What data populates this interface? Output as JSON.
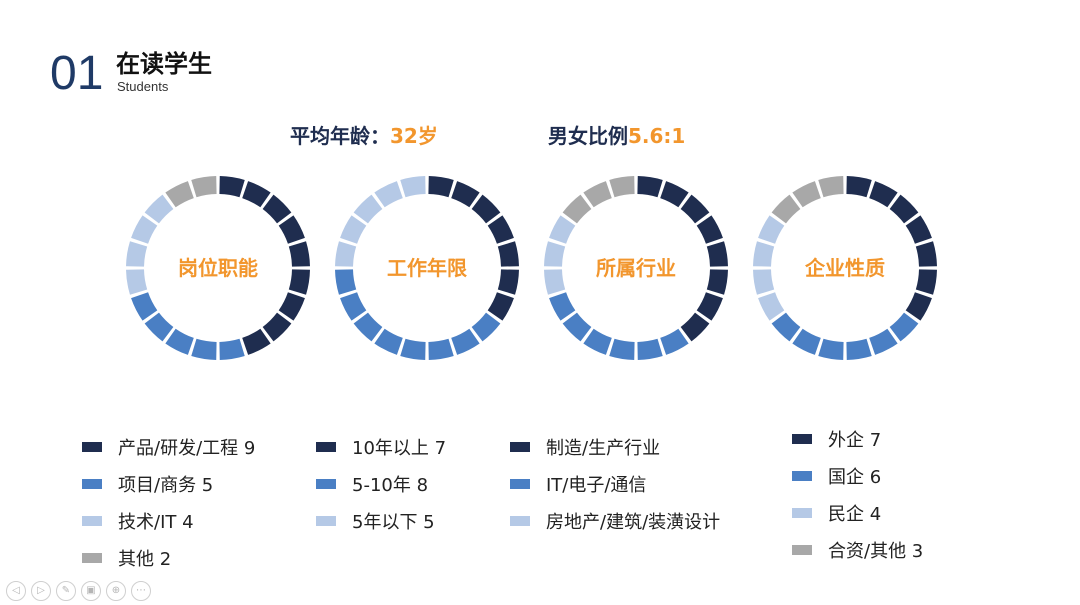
{
  "header": {
    "number": "01",
    "title": "在读学生",
    "subtitle": "Students"
  },
  "stats": {
    "avg_age_label": "平均年龄：",
    "avg_age_value": "32岁",
    "gender_label": "男女比例",
    "gender_value": "5.6:1"
  },
  "colors": {
    "dark": "#1f2d4f",
    "mid": "#4a7fc4",
    "light": "#b5c9e6",
    "gray": "#a8a8a8",
    "accent": "#f2962d"
  },
  "chart_data": [
    {
      "type": "pie",
      "title": "岗位职能",
      "series": [
        {
          "name": "产品/研发/工程",
          "value": 9,
          "color": "#1f2d4f"
        },
        {
          "name": "项目/商务",
          "value": 5,
          "color": "#4a7fc4"
        },
        {
          "name": "技术/IT",
          "value": 4,
          "color": "#b5c9e6"
        },
        {
          "name": "其他",
          "value": 2,
          "color": "#a8a8a8"
        }
      ],
      "legend": [
        "产品/研发/工程 9",
        "项目/商务 5",
        "技术/IT 4",
        "其他 2"
      ]
    },
    {
      "type": "pie",
      "title": "工作年限",
      "series": [
        {
          "name": "10年以上",
          "value": 7,
          "color": "#1f2d4f"
        },
        {
          "name": "5-10年",
          "value": 8,
          "color": "#4a7fc4"
        },
        {
          "name": "5年以下",
          "value": 5,
          "color": "#b5c9e6"
        }
      ],
      "legend": [
        "10年以上 7",
        "5-10年  8",
        "5年以下 5"
      ]
    },
    {
      "type": "pie",
      "title": "所属行业",
      "series": [
        {
          "name": "制造/生产行业",
          "value": 8,
          "color": "#1f2d4f"
        },
        {
          "name": "IT/电子/通信",
          "value": 6,
          "color": "#4a7fc4"
        },
        {
          "name": "房地产/建筑/装潢设计",
          "value": 3,
          "color": "#b5c9e6"
        },
        {
          "name": "",
          "value": 3,
          "color": "#a8a8a8"
        }
      ],
      "legend": [
        "制造/生产行业",
        "IT/电子/通信",
        "房地产/建筑/装潢设计"
      ]
    },
    {
      "type": "pie",
      "title": "企业性质",
      "series": [
        {
          "name": "外企",
          "value": 7,
          "color": "#1f2d4f"
        },
        {
          "name": "国企",
          "value": 6,
          "color": "#4a7fc4"
        },
        {
          "name": "民企",
          "value": 4,
          "color": "#b5c9e6"
        },
        {
          "name": "合资/其他",
          "value": 3,
          "color": "#a8a8a8"
        }
      ],
      "legend": [
        "外企 7",
        "国企 6",
        "民企 4",
        "合资/其他 3"
      ]
    }
  ],
  "toolbar": {
    "icons": [
      "prev-icon",
      "next-icon",
      "pen-icon",
      "slides-icon",
      "zoom-icon",
      "more-icon"
    ],
    "glyphs": [
      "◁",
      "▷",
      "✎",
      "▣",
      "⊕",
      "⋯"
    ]
  }
}
